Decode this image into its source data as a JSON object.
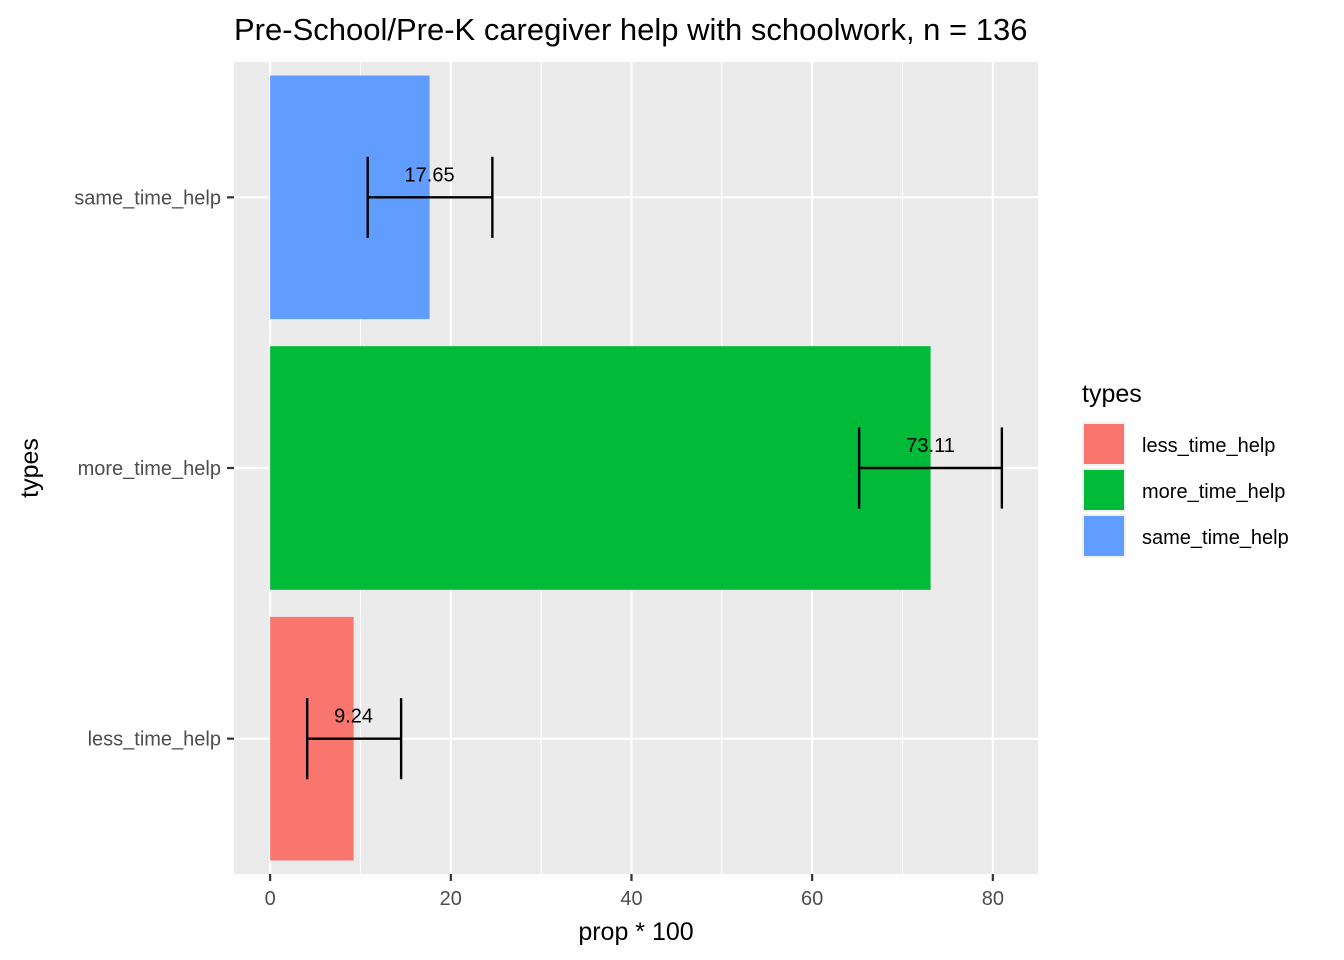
{
  "chart_data": {
    "type": "bar",
    "orientation": "horizontal",
    "title": "Pre-School/Pre-K caregiver help with schoolwork, n = 136",
    "xlabel": "prop * 100",
    "ylabel": "types",
    "xlim": [
      -4,
      85
    ],
    "x_ticks": [
      0,
      20,
      40,
      60,
      80
    ],
    "categories": [
      "less_time_help",
      "more_time_help",
      "same_time_help"
    ],
    "values": [
      9.24,
      73.11,
      17.65
    ],
    "value_labels": [
      "9.24",
      "73.11",
      "17.65"
    ],
    "error_low": [
      4.1,
      65.2,
      10.8
    ],
    "error_high": [
      14.5,
      81.0,
      24.6
    ],
    "colors": [
      "#F8766D",
      "#00BA38",
      "#619CFF"
    ],
    "grid": true,
    "legend": {
      "title": "types",
      "position": "right",
      "entries": [
        "less_time_help",
        "more_time_help",
        "same_time_help"
      ]
    }
  }
}
